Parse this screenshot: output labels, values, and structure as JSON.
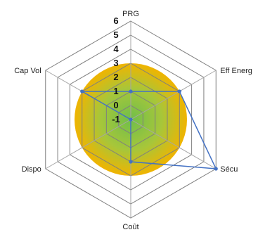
{
  "chart_data": {
    "type": "radar",
    "axes": [
      "PRG",
      "Eff Energ",
      "Sécu",
      "Coût",
      "Dispo",
      "Cap Vol"
    ],
    "range": [
      -1,
      6
    ],
    "ticks": [
      -1,
      0,
      1,
      2,
      3,
      4,
      5,
      6
    ],
    "tick_labels": [
      "-1",
      "0",
      "1",
      "2",
      "3",
      "4",
      "5",
      "6"
    ],
    "series": [
      {
        "values": [
          1,
          3,
          6,
          2,
          -1,
          3
        ],
        "color": "#4472C4"
      }
    ],
    "grid": true,
    "legend": "none",
    "background_fill": {
      "type": "radial-gradient",
      "outer_value": 3,
      "center_color": "#70BF4A",
      "mid_color": "#A7C63A",
      "edge_color": "#F0B400"
    },
    "grid_color": "#7F7F7F",
    "axis_line_color": "#A6A6A6"
  }
}
